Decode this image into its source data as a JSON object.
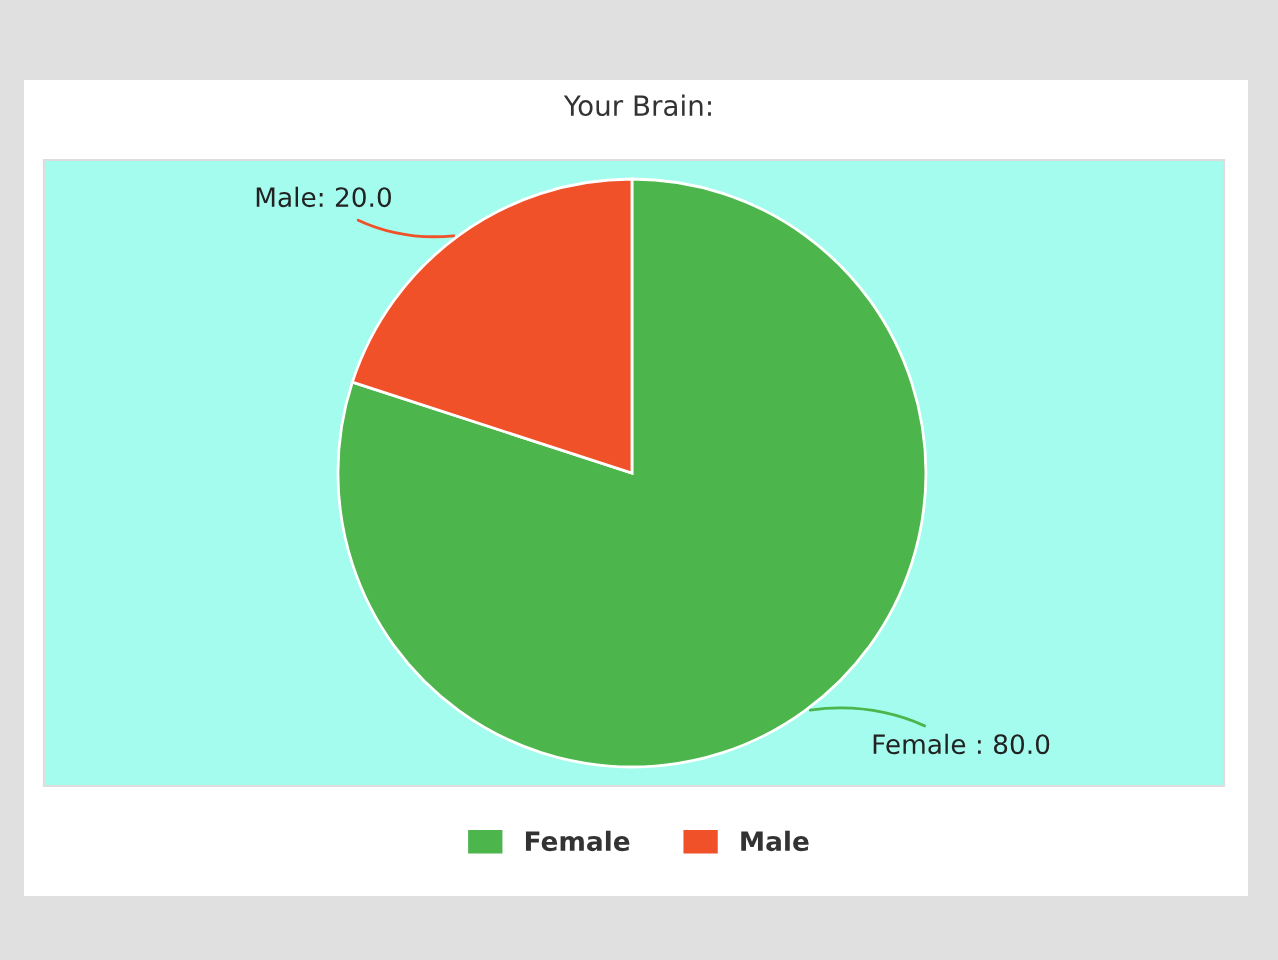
{
  "chart_data": {
    "type": "pie",
    "title": "Your Brain:",
    "categories": [
      "Female",
      "Male"
    ],
    "values": [
      80,
      20
    ],
    "colors": [
      "#4cb54b",
      "#f05129"
    ],
    "value_labels": [
      "Female : 80.0",
      "Male: 20.0"
    ],
    "legend": "bottom"
  }
}
